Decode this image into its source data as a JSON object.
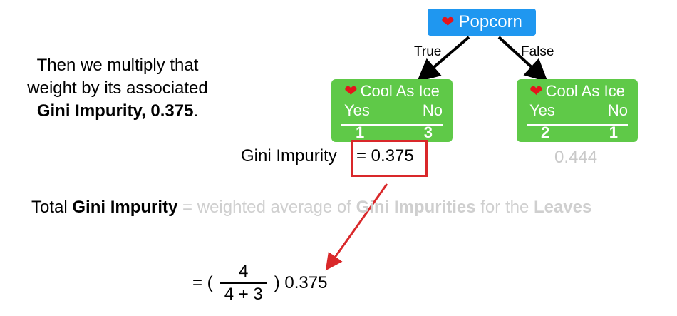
{
  "explanation": {
    "line1": "Then we multiply that",
    "line2": "weight by its associated",
    "line3_bold": "Gini Impurity, 0.375",
    "line3_end": "."
  },
  "tree": {
    "root": {
      "icon": "heart-icon",
      "label": "Popcorn"
    },
    "edges": {
      "left": "True",
      "right": "False"
    },
    "leaves": [
      {
        "icon": "heart-icon",
        "title": "Cool As Ice",
        "yes_label": "Yes",
        "no_label": "No",
        "yes_count": "1",
        "no_count": "3",
        "gini": "0.375"
      },
      {
        "icon": "heart-icon",
        "title": "Cool As Ice",
        "yes_label": "Yes",
        "no_label": "No",
        "yes_count": "2",
        "no_count": "1",
        "gini": "0.444"
      }
    ]
  },
  "gini_label": "Gini Impurity",
  "gini_equals": "= 0.375",
  "total": {
    "prefix": "Total ",
    "bold1": "Gini Impurity",
    "mid": " = weighted average of ",
    "bold2": "Gini Impurities",
    "mid2": " for the ",
    "bold3": "Leaves"
  },
  "formula": {
    "lead": "= (",
    "numerator": "4",
    "denominator": "4 + 3",
    "tail": ") 0.375"
  },
  "colors": {
    "root_blue": "#1f97f0",
    "leaf_green": "#5fc948",
    "highlight_red": "#d9282a",
    "faded_gray": "#cfcfcf",
    "heart_red": "#e5141b"
  }
}
